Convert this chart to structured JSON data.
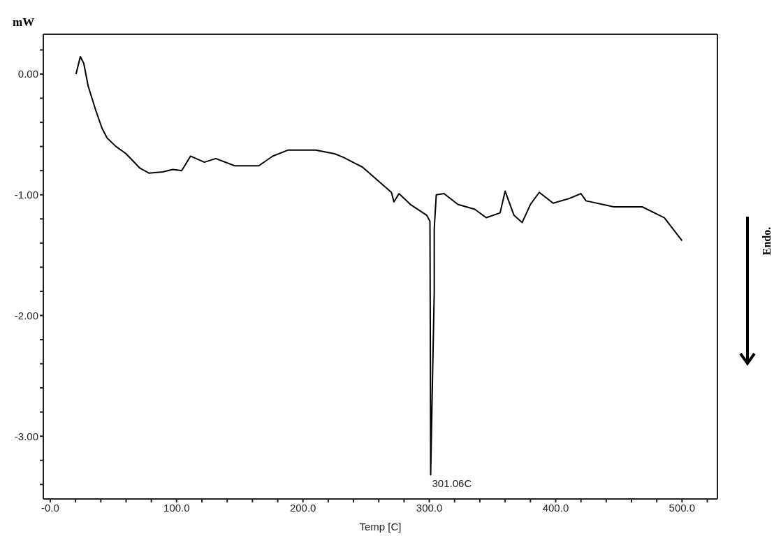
{
  "chart_data": {
    "type": "line",
    "xlabel": "Temp [C]",
    "ylabel": "mW",
    "x": [
      20.4,
      23.8,
      26.5,
      30,
      36,
      41,
      45,
      52,
      60,
      71,
      78,
      89,
      97,
      104,
      111,
      122,
      131,
      146,
      165,
      176,
      188,
      210,
      225,
      232,
      247,
      270,
      272,
      276,
      285,
      298,
      300.5,
      300.8,
      301.06,
      302,
      303.9,
      303.9,
      305.5,
      311.6,
      322.6,
      336,
      345,
      356,
      360,
      367,
      373.5,
      380,
      387,
      398,
      411,
      420,
      424,
      446,
      468.5,
      486,
      500
    ],
    "series": [
      {
        "color": "#000000",
        "values": [
          0,
          0.145,
          0.09,
          -0.1,
          -0.3,
          -0.45,
          -0.53,
          -0.6,
          -0.66,
          -0.78,
          -0.82,
          -0.81,
          -0.79,
          -0.8,
          -0.68,
          -0.73,
          -0.7,
          -0.76,
          -0.76,
          -0.68,
          -0.63,
          -0.63,
          -0.66,
          -0.69,
          -0.77,
          -0.98,
          -1.06,
          -0.99,
          -1.08,
          -1.17,
          -1.22,
          -2.2,
          -3.32,
          -2.8,
          -1.8,
          -1.28,
          -1.0,
          -0.99,
          -1.08,
          -1.12,
          -1.19,
          -1.15,
          -0.97,
          -1.17,
          -1.23,
          -1.08,
          -0.98,
          -1.07,
          -1.03,
          -0.99,
          -1.05,
          -1.1,
          -1.1,
          -1.19,
          -1.38
        ]
      }
    ],
    "xlim": [
      -5.5,
      528
    ],
    "xticks": [
      {
        "value": 0,
        "label": "-0.0"
      },
      {
        "value": 20,
        "label": null
      },
      {
        "value": 40,
        "label": null
      },
      {
        "value": 60,
        "label": null
      },
      {
        "value": 80,
        "label": null
      },
      {
        "value": 100,
        "label": "100.0"
      },
      {
        "value": 120,
        "label": null
      },
      {
        "value": 140,
        "label": null
      },
      {
        "value": 160,
        "label": null
      },
      {
        "value": 180,
        "label": null
      },
      {
        "value": 200,
        "label": "200.0"
      },
      {
        "value": 220,
        "label": null
      },
      {
        "value": 240,
        "label": null
      },
      {
        "value": 260,
        "label": null
      },
      {
        "value": 280,
        "label": null
      },
      {
        "value": 300,
        "label": "300.0"
      },
      {
        "value": 320,
        "label": null
      },
      {
        "value": 340,
        "label": null
      },
      {
        "value": 360,
        "label": null
      },
      {
        "value": 380,
        "label": null
      },
      {
        "value": 400,
        "label": "400.0"
      },
      {
        "value": 420,
        "label": null
      },
      {
        "value": 440,
        "label": null
      },
      {
        "value": 460,
        "label": null
      },
      {
        "value": 480,
        "label": null
      },
      {
        "value": 500,
        "label": "500.0"
      },
      {
        "value": 520,
        "label": null
      }
    ],
    "ylim": [
      -3.52,
      0.33
    ],
    "yticks": [
      {
        "value": 0.2,
        "label": null
      },
      {
        "value": 0,
        "label": "0.00"
      },
      {
        "value": -0.2,
        "label": null
      },
      {
        "value": -0.4,
        "label": null
      },
      {
        "value": -0.6,
        "label": null
      },
      {
        "value": -0.8,
        "label": null
      },
      {
        "value": -1,
        "label": "-1.00"
      },
      {
        "value": -1.2,
        "label": null
      },
      {
        "value": -1.4,
        "label": null
      },
      {
        "value": -1.6,
        "label": null
      },
      {
        "value": -1.8,
        "label": null
      },
      {
        "value": -2,
        "label": "-2.00"
      },
      {
        "value": -2.2,
        "label": null
      },
      {
        "value": -2.4,
        "label": null
      },
      {
        "value": -2.6,
        "label": null
      },
      {
        "value": -2.8,
        "label": null
      },
      {
        "value": -3,
        "label": "-3.00"
      },
      {
        "value": -3.2,
        "label": null
      },
      {
        "value": -3.4,
        "label": null
      }
    ],
    "annotations": [
      {
        "text": "301.06C",
        "x": 301.06,
        "y": -3.32
      },
      "Endo."
    ],
    "marker": "none",
    "line_style": "solid"
  }
}
